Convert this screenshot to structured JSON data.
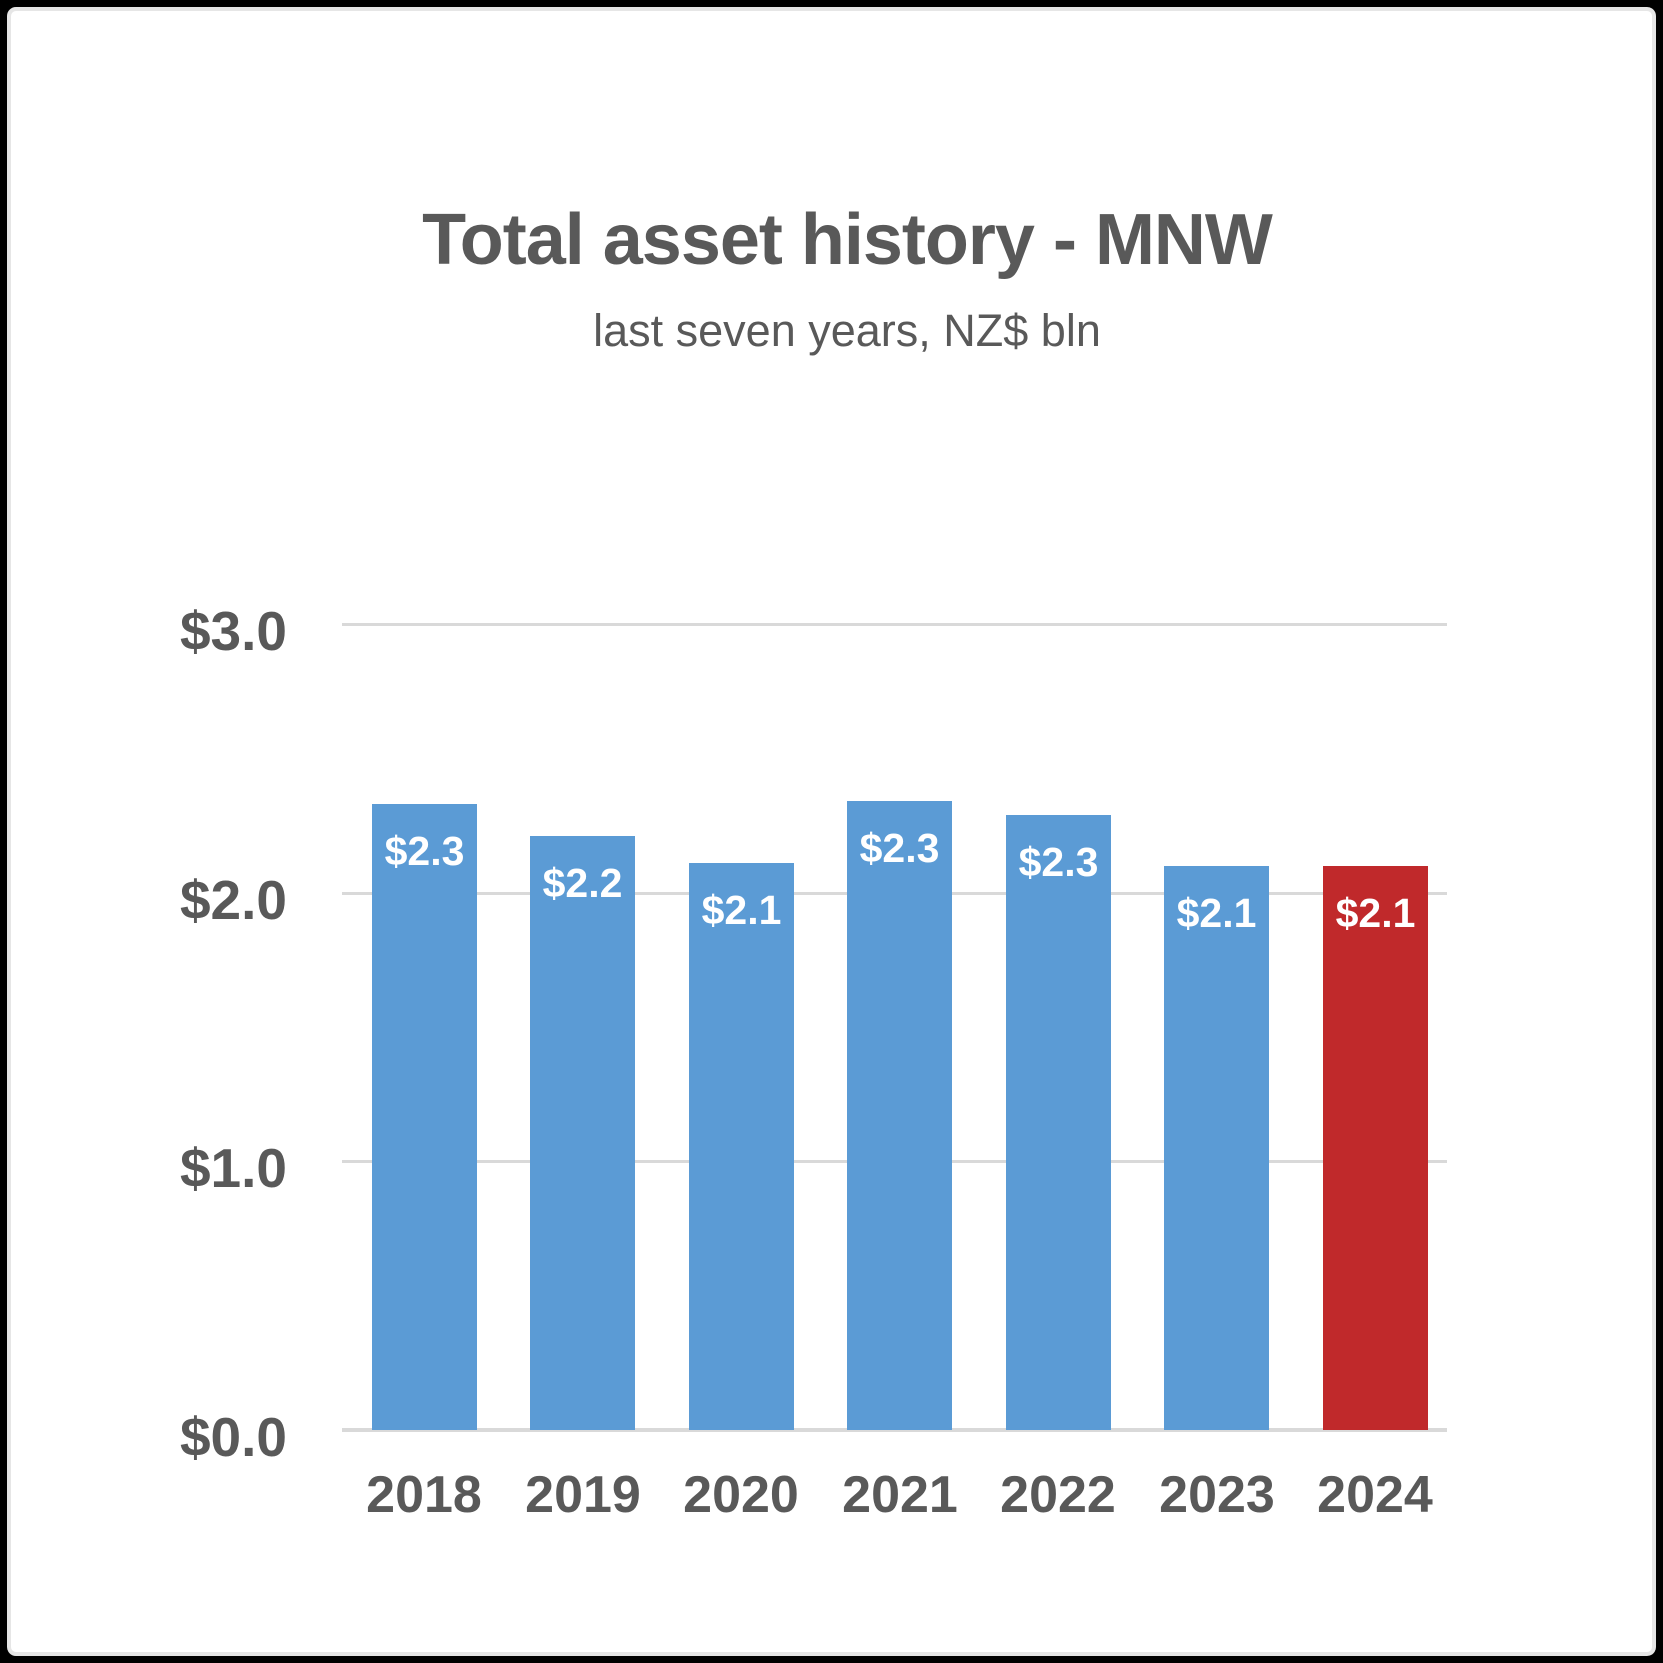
{
  "title": "Total asset history - MNW",
  "subtitle": "last seven years, NZ$ bln",
  "chart_data": {
    "type": "bar",
    "title": "Total asset history - MNW",
    "subtitle": "last seven years, NZ$ bln",
    "categories": [
      "2018",
      "2019",
      "2020",
      "2021",
      "2022",
      "2023",
      "2024"
    ],
    "values": [
      2.3,
      2.2,
      2.1,
      2.3,
      2.3,
      2.1,
      2.1
    ],
    "values_precise": [
      2.33,
      2.21,
      2.11,
      2.34,
      2.29,
      2.1,
      2.1
    ],
    "data_labels": [
      "$2.3",
      "$2.2",
      "$2.1",
      "$2.3",
      "$2.3",
      "$2.1",
      "$2.1"
    ],
    "highlight_index": 6,
    "xlabel": "",
    "ylabel": "",
    "y_axis": {
      "min": 0,
      "max": 3,
      "tick_labels": [
        "$3.0",
        "$2.0",
        "$1.0",
        "$0.0"
      ],
      "tick_values": [
        3,
        2,
        1,
        0
      ]
    },
    "grid": true,
    "legend": false,
    "colors": {
      "bar_default": "#5B9BD5",
      "bar_highlight": "#C0292B",
      "text_gray": "#595959",
      "gridline": "#D9D9D9",
      "axis_line": "#D9D9D9",
      "data_label": "#FFFFFF"
    }
  }
}
